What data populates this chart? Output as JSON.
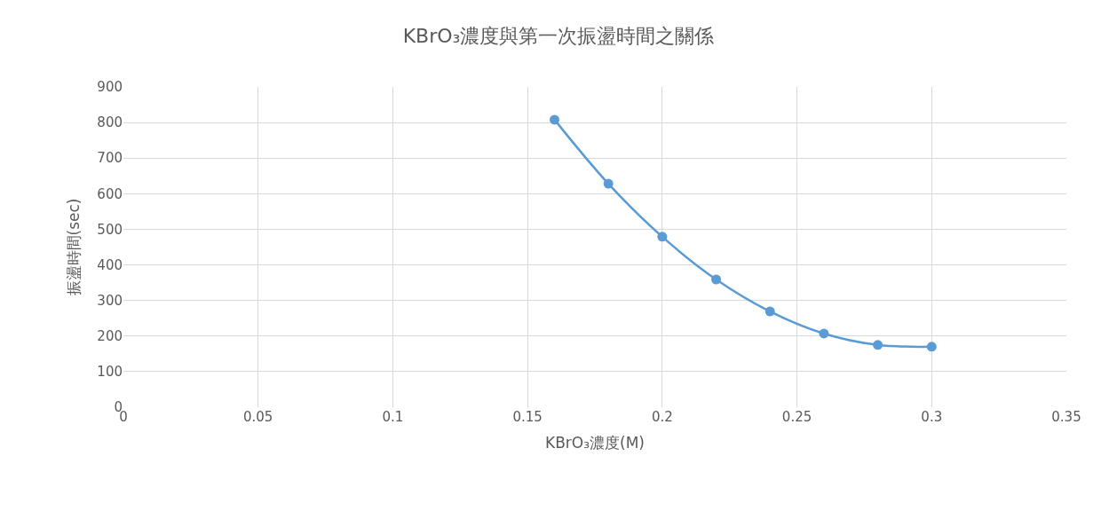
{
  "chart_data": {
    "type": "line",
    "title": "KBrO₃濃度與第一次振盪時間之關係",
    "xlabel": "KBrO₃濃度(M)",
    "ylabel": "振盪時間(sec)",
    "x": [
      0.16,
      0.18,
      0.2,
      0.22,
      0.24,
      0.26,
      0.28,
      0.3
    ],
    "series": [
      {
        "color": "#5b9bd5",
        "values": [
          808,
          628,
          479,
          359,
          269,
          207,
          175,
          170
        ]
      }
    ],
    "xlim": [
      0,
      0.35
    ],
    "xticks": [
      0,
      0.05,
      0.1,
      0.15,
      0.2,
      0.25,
      0.3,
      0.35
    ],
    "ylim": [
      0,
      900
    ],
    "yticks": [
      0,
      100,
      200,
      300,
      400,
      500,
      600,
      700,
      800,
      900
    ],
    "grid": true,
    "marker": "circle",
    "line_style": "solid"
  }
}
